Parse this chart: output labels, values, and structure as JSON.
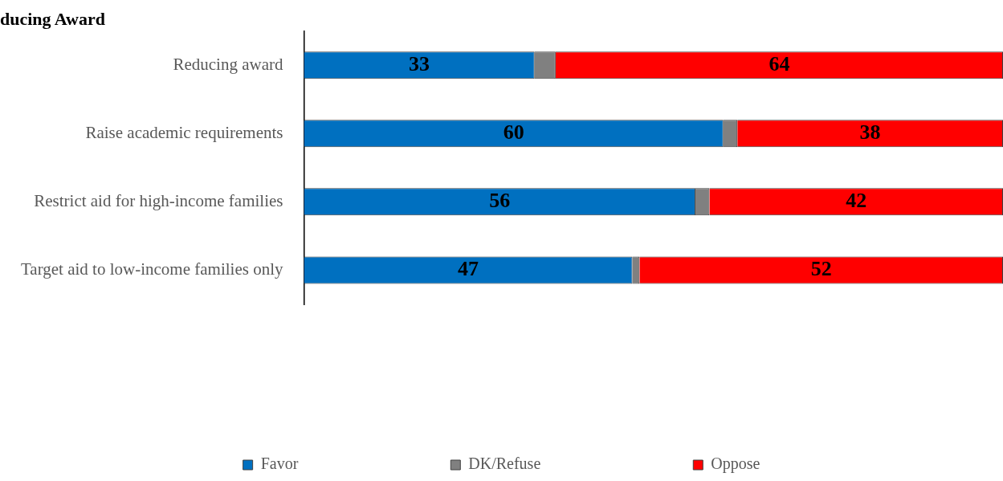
{
  "chart_data": {
    "type": "bar",
    "title": "ducing Award",
    "orientation": "horizontal",
    "stacked": true,
    "categories": [
      "Reducing award",
      "Raise academic requirements",
      "Restrict aid for high-income families",
      "Target aid to low-income families only"
    ],
    "series": [
      {
        "name": "Favor",
        "color": "#0070c0",
        "values": [
          33,
          60,
          56,
          47
        ],
        "value_labels": [
          "33",
          "60",
          "56",
          "47"
        ]
      },
      {
        "name": "DK/Refuse",
        "color": "#808080",
        "values": [
          3,
          2,
          2,
          1
        ]
      },
      {
        "name": "Oppose",
        "color": "#ff0000",
        "values": [
          64,
          38,
          42,
          52
        ],
        "value_labels": [
          "64",
          "38",
          "42",
          "52"
        ]
      }
    ],
    "xlim": [
      0,
      100
    ],
    "tick_labels": "y",
    "legend": "bottom"
  }
}
